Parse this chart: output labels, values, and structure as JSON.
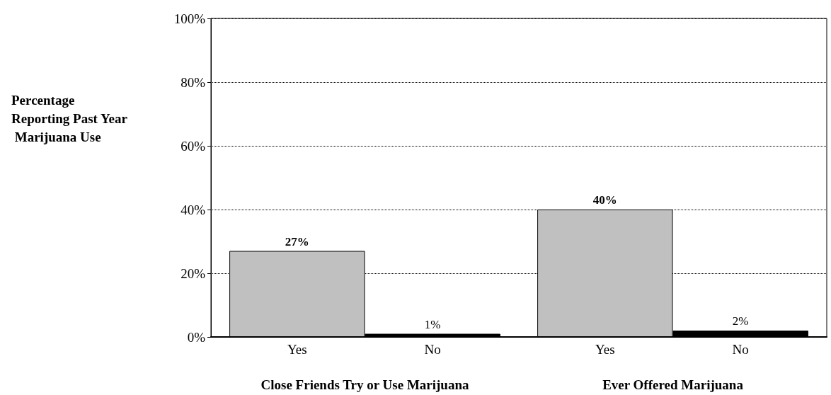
{
  "chart_data": {
    "type": "bar",
    "ylabel": "Percentage Reporting Past Year Marijuana Use",
    "categories": [
      "Close Friends Try or Use Marijuana",
      "Ever Offered Marijuana"
    ],
    "series": [
      {
        "name": "Yes",
        "color": "#c0c0c0",
        "values": [
          27,
          40
        ],
        "value_labels": [
          "27%",
          "40%"
        ]
      },
      {
        "name": "No",
        "color": "#000000",
        "values": [
          1,
          2
        ],
        "value_labels": [
          "1%",
          "2%"
        ]
      }
    ],
    "ylim": [
      0,
      100
    ],
    "yticks": [
      {
        "value": 0,
        "label": "0%"
      },
      {
        "value": 20,
        "label": "20%"
      },
      {
        "value": 40,
        "label": "40%"
      },
      {
        "value": 60,
        "label": "60%"
      },
      {
        "value": 80,
        "label": "80%"
      },
      {
        "value": 100,
        "label": "100%"
      }
    ],
    "grid": "y",
    "legend": false
  }
}
